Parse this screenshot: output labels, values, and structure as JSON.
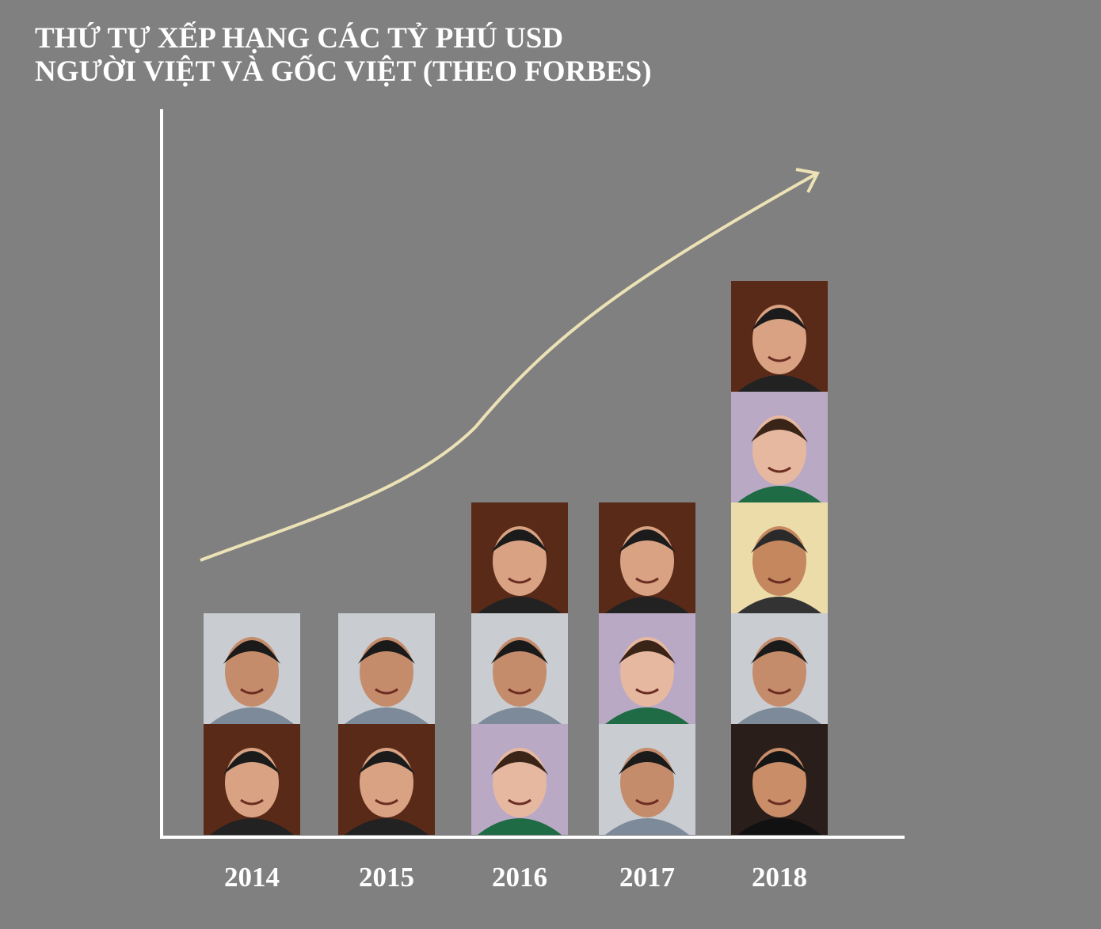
{
  "chart_data": {
    "type": "pictograph",
    "title": [
      "THỨ TỰ XẾP HẠNG CÁC TỶ PHÚ USD",
      "NGƯỜI VIỆT VÀ GỐC VIỆT (THEO FORBES)"
    ],
    "categories": [
      "2014",
      "2015",
      "2016",
      "2017",
      "2018"
    ],
    "values": [
      2,
      2,
      3,
      3,
      5
    ]
  }
}
